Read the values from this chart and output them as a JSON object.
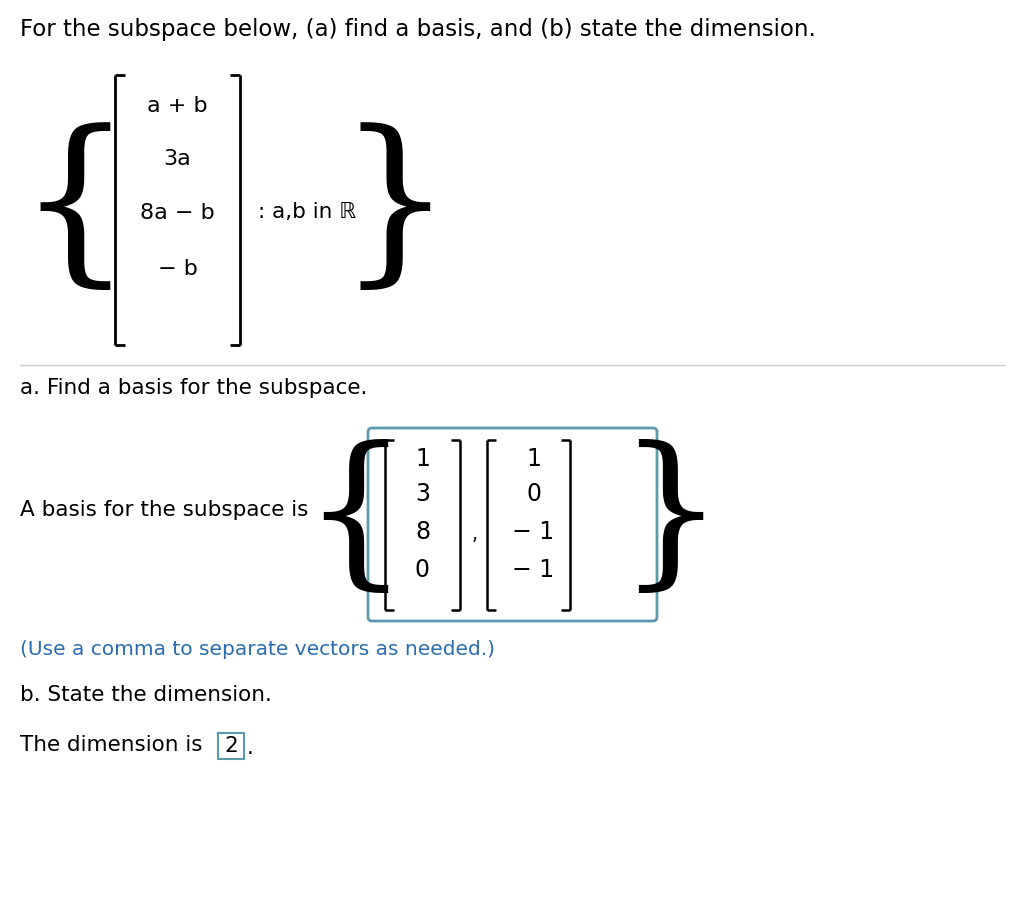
{
  "title": "For the subspace below, (a) find a basis, and (b) state the dimension.",
  "title_fontsize": 16.5,
  "body_fontsize": 15.5,
  "background_color": "#ffffff",
  "text_color": "#000000",
  "blue_color": "#2B6CB0",
  "teal_color": "#5B9BAD",
  "subspace_entries": [
    "a + b",
    "3a",
    "8a − b",
    "− b"
  ],
  "condition": ": a,b in ℝ",
  "part_a_label": "a. Find a basis for the subspace.",
  "basis_text": "A basis for the subspace is",
  "vector1": [
    "1",
    "3",
    "8",
    "0"
  ],
  "vector2": [
    "1",
    "0",
    "− 1",
    "− 1"
  ],
  "hint_text": "(Use a comma to separate vectors as needed.)",
  "part_b_label": "b. State the dimension.",
  "dimension_text": "The dimension is",
  "dimension_value": "2"
}
